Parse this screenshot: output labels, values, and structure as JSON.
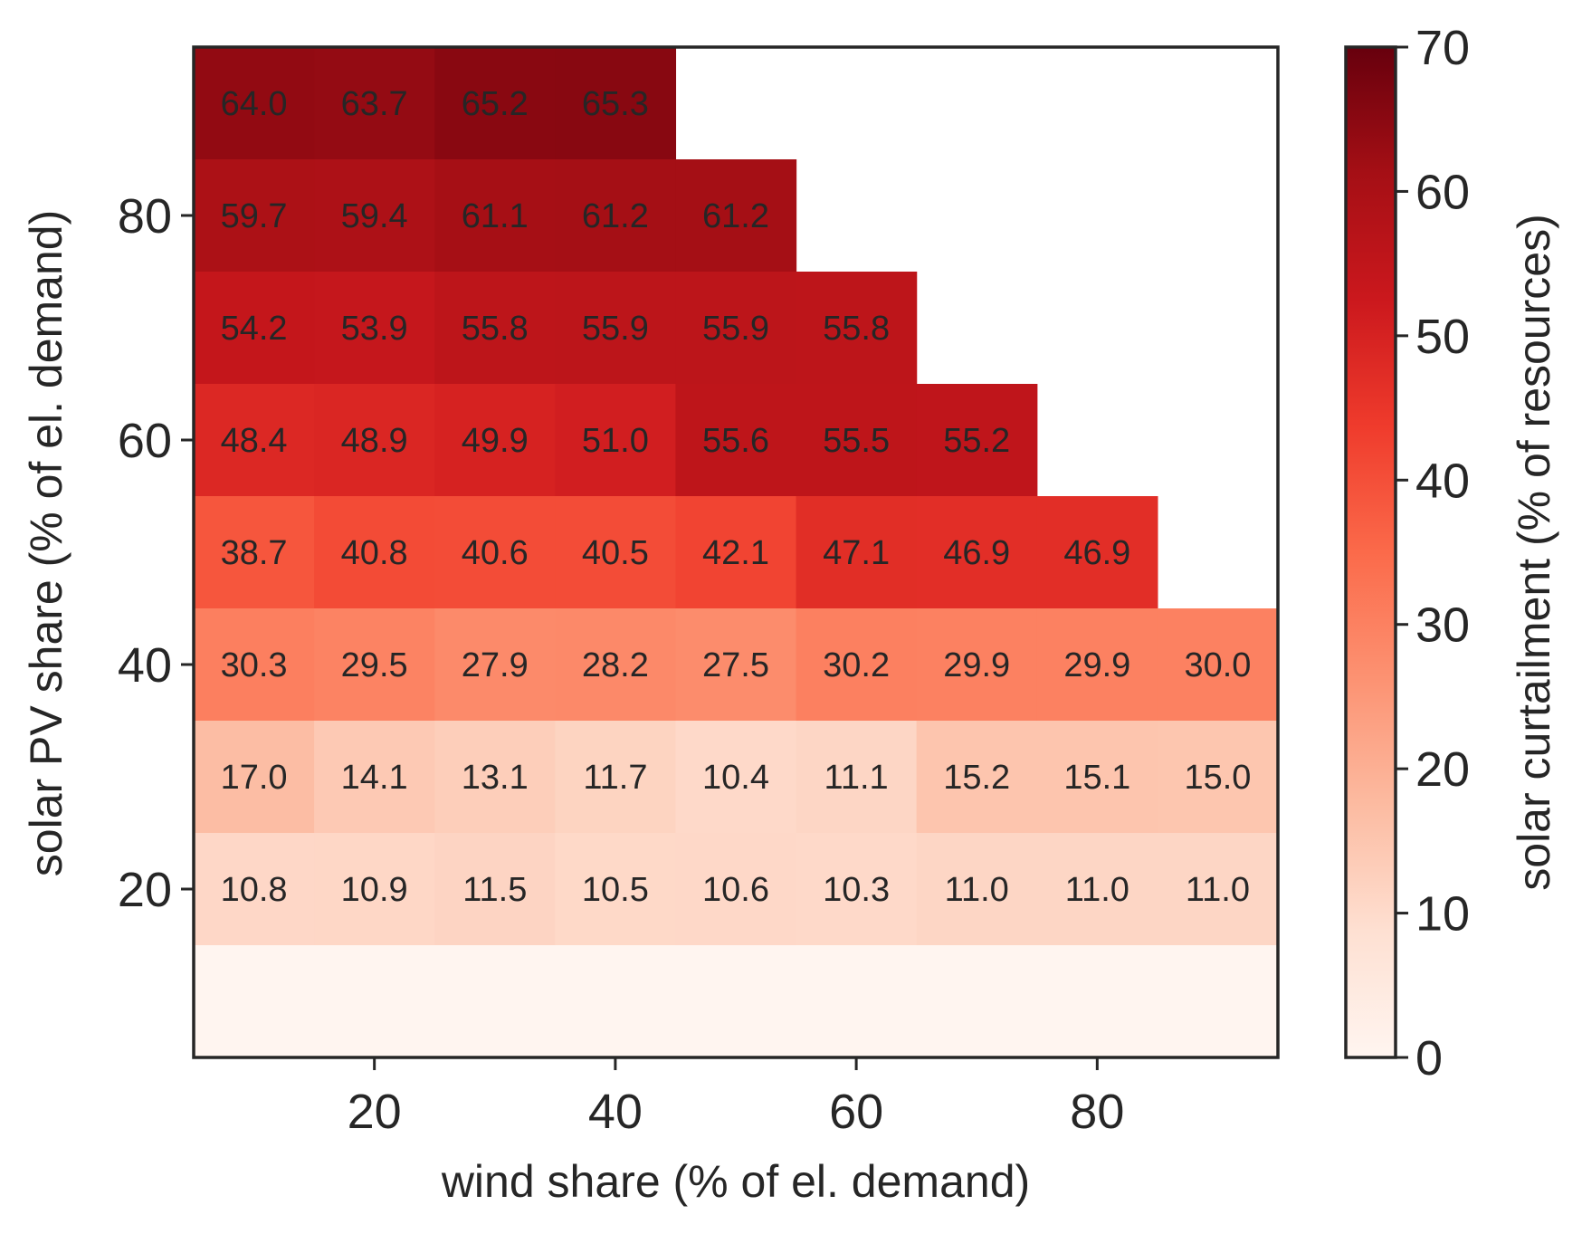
{
  "chart_data": {
    "type": "heatmap",
    "title": "",
    "xlabel": "wind share (% of el. demand)",
    "ylabel": "solar PV share (% of el. demand)",
    "x_ticks": [
      20,
      40,
      60,
      80
    ],
    "y_ticks": [
      20,
      40,
      60,
      80
    ],
    "x_range": [
      5,
      95
    ],
    "y_range": [
      5,
      95
    ],
    "x_centers": [
      10,
      20,
      30,
      40,
      50,
      60,
      70,
      80,
      90
    ],
    "y_centers": [
      90,
      80,
      70,
      60,
      50,
      40,
      30,
      20,
      10
    ],
    "values": [
      [
        64.0,
        63.7,
        65.2,
        65.3,
        null,
        null,
        null,
        null,
        null
      ],
      [
        59.7,
        59.4,
        61.1,
        61.2,
        61.2,
        null,
        null,
        null,
        null
      ],
      [
        54.2,
        53.9,
        55.8,
        55.9,
        55.9,
        55.8,
        null,
        null,
        null
      ],
      [
        48.4,
        48.9,
        49.9,
        51.0,
        55.6,
        55.5,
        55.2,
        null,
        null
      ],
      [
        38.7,
        40.8,
        40.6,
        40.5,
        42.1,
        47.1,
        46.9,
        46.9,
        null
      ],
      [
        30.3,
        29.5,
        27.9,
        28.2,
        27.5,
        30.2,
        29.9,
        29.9,
        30.0
      ],
      [
        17.0,
        14.1,
        13.1,
        11.7,
        10.4,
        11.1,
        15.2,
        15.1,
        15.0
      ],
      [
        10.8,
        10.9,
        11.5,
        10.5,
        10.6,
        10.3,
        11.0,
        11.0,
        11.0
      ],
      [
        0.0,
        0.0,
        0.0,
        0.0,
        0.0,
        0.0,
        0.0,
        0.0,
        0.0
      ]
    ],
    "labels": [
      [
        "64.0",
        "63.7",
        "65.2",
        "65.3",
        "",
        "",
        "",
        "",
        ""
      ],
      [
        "59.7",
        "59.4",
        "61.1",
        "61.2",
        "61.2",
        "",
        "",
        "",
        ""
      ],
      [
        "54.2",
        "53.9",
        "55.8",
        "55.9",
        "55.9",
        "55.8",
        "",
        "",
        ""
      ],
      [
        "48.4",
        "48.9",
        "49.9",
        "51.0",
        "55.6",
        "55.5",
        "55.2",
        "",
        ""
      ],
      [
        "38.7",
        "40.8",
        "40.6",
        "40.5",
        "42.1",
        "47.1",
        "46.9",
        "46.9",
        ""
      ],
      [
        "30.3",
        "29.5",
        "27.9",
        "28.2",
        "27.5",
        "30.2",
        "29.9",
        "29.9",
        "30.0"
      ],
      [
        "17.0",
        "14.1",
        "13.1",
        "11.7",
        "10.4",
        "11.1",
        "15.2",
        "15.1",
        "15.0"
      ],
      [
        "10.8",
        "10.9",
        "11.5",
        "10.5",
        "10.6",
        "10.3",
        "11.0",
        "11.0",
        "11.0"
      ],
      [
        "",
        "",
        "",
        "",
        "",
        "",
        "",
        "",
        ""
      ]
    ],
    "colorbar": {
      "label": "solar curtailment (% of resources)",
      "range": [
        0,
        70
      ],
      "ticks": [
        0,
        10,
        20,
        30,
        40,
        50,
        60,
        70
      ],
      "colormap": "Reds",
      "color_stops": [
        "#fff5f0",
        "#fee0d2",
        "#fcbba1",
        "#fc9272",
        "#fb6a4a",
        "#ef3b2c",
        "#cb181d",
        "#a50f15",
        "#67000d"
      ]
    },
    "grid": false,
    "legend": "none"
  }
}
